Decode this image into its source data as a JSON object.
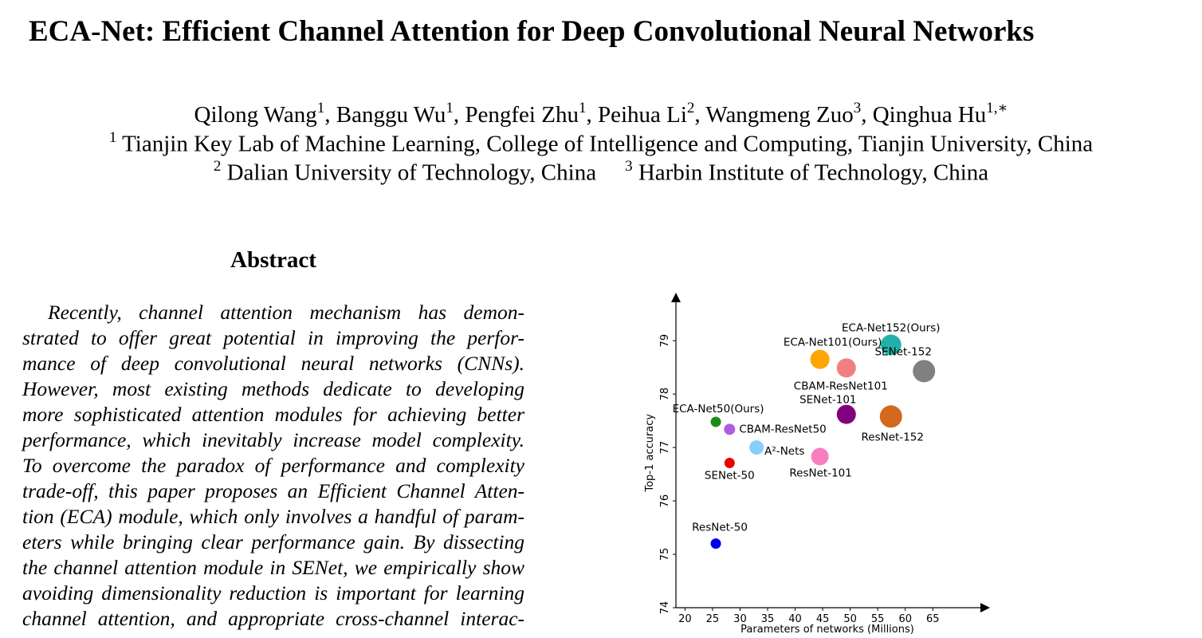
{
  "paper": {
    "title": "ECA-Net: Efficient Channel Attention for Deep Convolutional Neural Networks",
    "authors": [
      {
        "name": "Qilong Wang",
        "sup": "1"
      },
      {
        "name": "Banggu Wu",
        "sup": "1"
      },
      {
        "name": "Pengfei Zhu",
        "sup": "1"
      },
      {
        "name": "Peihua Li",
        "sup": "2"
      },
      {
        "name": "Wangmeng Zuo",
        "sup": "3"
      },
      {
        "name": "Qinghua Hu",
        "sup": "1,∗"
      }
    ],
    "affiliations": [
      {
        "sup": "1",
        "text": "Tianjin Key Lab of Machine Learning, College of Intelligence and Computing, Tianjin University, China"
      },
      {
        "sup": "2",
        "text": "Dalian University of Technology, China"
      },
      {
        "sup": "3",
        "text": "Harbin Institute of Technology, China"
      }
    ],
    "abstract_heading": "Abstract",
    "abstract_lines": [
      "Recently, channel attention mechanism has demon-",
      "strated to offer great potential in improving the perfor-",
      "mance of deep convolutional neural networks (CNNs).",
      "However, most existing methods dedicate to developing",
      "more sophisticated attention modules for achieving better",
      "performance, which inevitably increase model complexity.",
      "To overcome the paradox of performance and complexity",
      "trade-off, this paper proposes an Efficient Channel Atten-",
      "tion (ECA) module, which only involves a handful of param-",
      "eters while bringing clear performance gain. By dissecting",
      "the channel attention module in SENet, we empirically show",
      "avoiding dimensionality reduction is important for learning",
      "channel attention, and appropriate cross-channel interac-"
    ]
  },
  "chart_data": {
    "type": "scatter",
    "xlabel": "Parameters of networks (Millions)",
    "ylabel": "Top-1 accuracy",
    "x_ticks": [
      20,
      25,
      30,
      35,
      40,
      45,
      50,
      55,
      60,
      65
    ],
    "y_ticks": [
      74,
      75,
      76,
      77,
      78,
      79
    ],
    "xlim": [
      18.5,
      68
    ],
    "ylim": [
      74,
      79.6
    ],
    "grid": false,
    "points": [
      {
        "label": "ResNet-50",
        "x": 25.6,
        "y": 75.2,
        "color": "#0000ee",
        "size": 6.5
      },
      {
        "label": "SENet-50",
        "x": 28.1,
        "y": 76.71,
        "color": "#ee0000",
        "size": 6.5
      },
      {
        "label": "ECA-Net50(Ours)",
        "x": 25.6,
        "y": 77.48,
        "color": "#1b8a1b",
        "size": 6.5
      },
      {
        "label": "CBAM-ResNet50",
        "x": 28.1,
        "y": 77.34,
        "color": "#b05ce0",
        "size": 7
      },
      {
        "label": "A²-Nets",
        "x": 33.0,
        "y": 77.0,
        "color": "#87cefa",
        "size": 9
      },
      {
        "label": "ResNet-101",
        "x": 44.5,
        "y": 76.83,
        "color": "#f77fbf",
        "size": 11
      },
      {
        "label": "ECA-Net101(Ours)",
        "x": 44.5,
        "y": 78.65,
        "color": "#ffa500",
        "size": 12
      },
      {
        "label": "CBAM-ResNet101",
        "x": 49.3,
        "y": 78.49,
        "color": "#f08080",
        "size": 12
      },
      {
        "label": "SENet-101",
        "x": 49.3,
        "y": 77.62,
        "color": "#800080",
        "size": 12
      },
      {
        "label": "ECA-Net152(Ours)",
        "x": 57.4,
        "y": 78.92,
        "color": "#20b2aa",
        "size": 13
      },
      {
        "label": "ResNet-152",
        "x": 57.4,
        "y": 77.58,
        "color": "#d2691e",
        "size": 14
      },
      {
        "label": "SENet-152",
        "x": 63.4,
        "y": 78.43,
        "color": "#808080",
        "size": 14
      }
    ]
  }
}
